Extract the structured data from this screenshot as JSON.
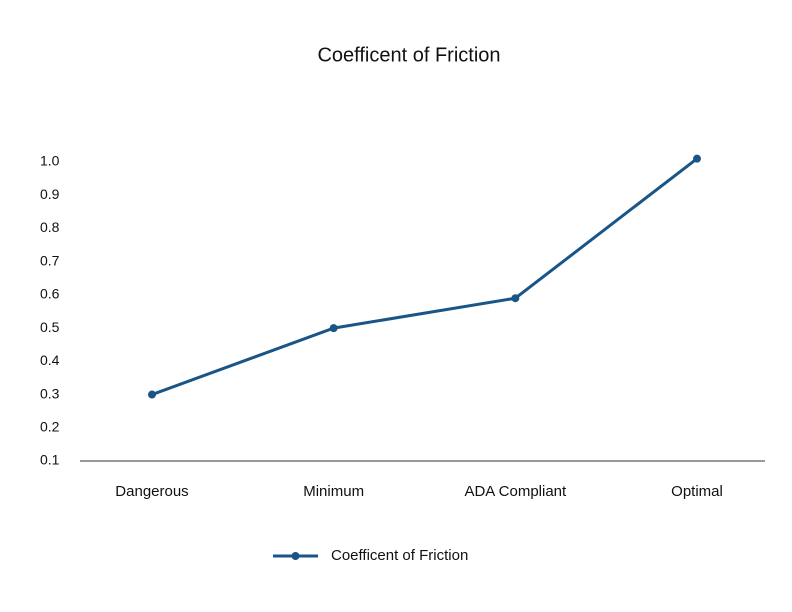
{
  "chart_data": {
    "type": "line",
    "title": "Coefficent of Friction",
    "categories": [
      "Dangerous",
      "Minimum",
      "ADA Compliant",
      "Optimal"
    ],
    "series": [
      {
        "name": "Coefficent of Friction",
        "color": "#1a5588",
        "values": [
          0.3,
          0.5,
          0.59,
          1.01
        ]
      }
    ],
    "ylim": [
      0.1,
      1.0
    ],
    "yticks": [
      0.1,
      0.2,
      0.3,
      0.4,
      0.5,
      0.6,
      0.7,
      0.8,
      0.9,
      {
        "value": 1,
        "label": "1.0"
      }
    ],
    "grid": false,
    "legend": "bottom"
  }
}
